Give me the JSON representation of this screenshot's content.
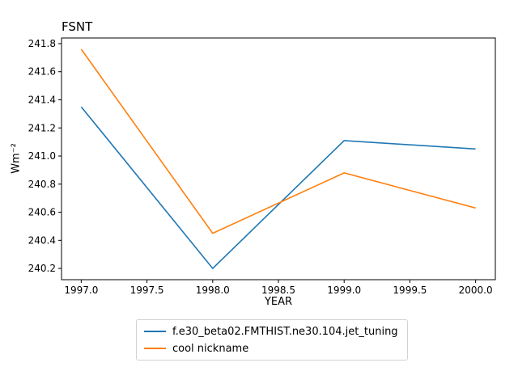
{
  "chart_data": {
    "type": "line",
    "title": "FSNT",
    "xlabel": "YEAR",
    "ylabel": "Wm⁻²",
    "x": [
      1997,
      1998,
      1999,
      2000
    ],
    "series": [
      {
        "name": "f.e30_beta02.FMTHIST.ne30.104.jet_tuning",
        "color": "#1f77b4",
        "values": [
          241.35,
          240.2,
          241.11,
          241.05
        ]
      },
      {
        "name": "cool nickname",
        "color": "#ff7f0e",
        "values": [
          241.76,
          240.45,
          240.88,
          240.63
        ]
      }
    ],
    "xlim": [
      1996.85,
      2000.15
    ],
    "ylim": [
      240.12,
      241.84
    ],
    "xticks": [
      {
        "value": 1997.0,
        "label": "1997.0"
      },
      {
        "value": 1997.5,
        "label": "1997.5"
      },
      {
        "value": 1998.0,
        "label": "1998.0"
      },
      {
        "value": 1998.5,
        "label": "1998.5"
      },
      {
        "value": 1999.0,
        "label": "1999.0"
      },
      {
        "value": 1999.5,
        "label": "1999.5"
      },
      {
        "value": 2000.0,
        "label": "2000.0"
      }
    ],
    "yticks": [
      {
        "value": 240.2,
        "label": "240.2"
      },
      {
        "value": 240.4,
        "label": "240.4"
      },
      {
        "value": 240.6,
        "label": "240.6"
      },
      {
        "value": 240.8,
        "label": "240.8"
      },
      {
        "value": 241.0,
        "label": "241.0"
      },
      {
        "value": 241.2,
        "label": "241.2"
      },
      {
        "value": 241.4,
        "label": "241.4"
      },
      {
        "value": 241.6,
        "label": "241.6"
      },
      {
        "value": 241.8,
        "label": "241.8"
      }
    ],
    "grid": false,
    "legend_position": "below-chart"
  }
}
